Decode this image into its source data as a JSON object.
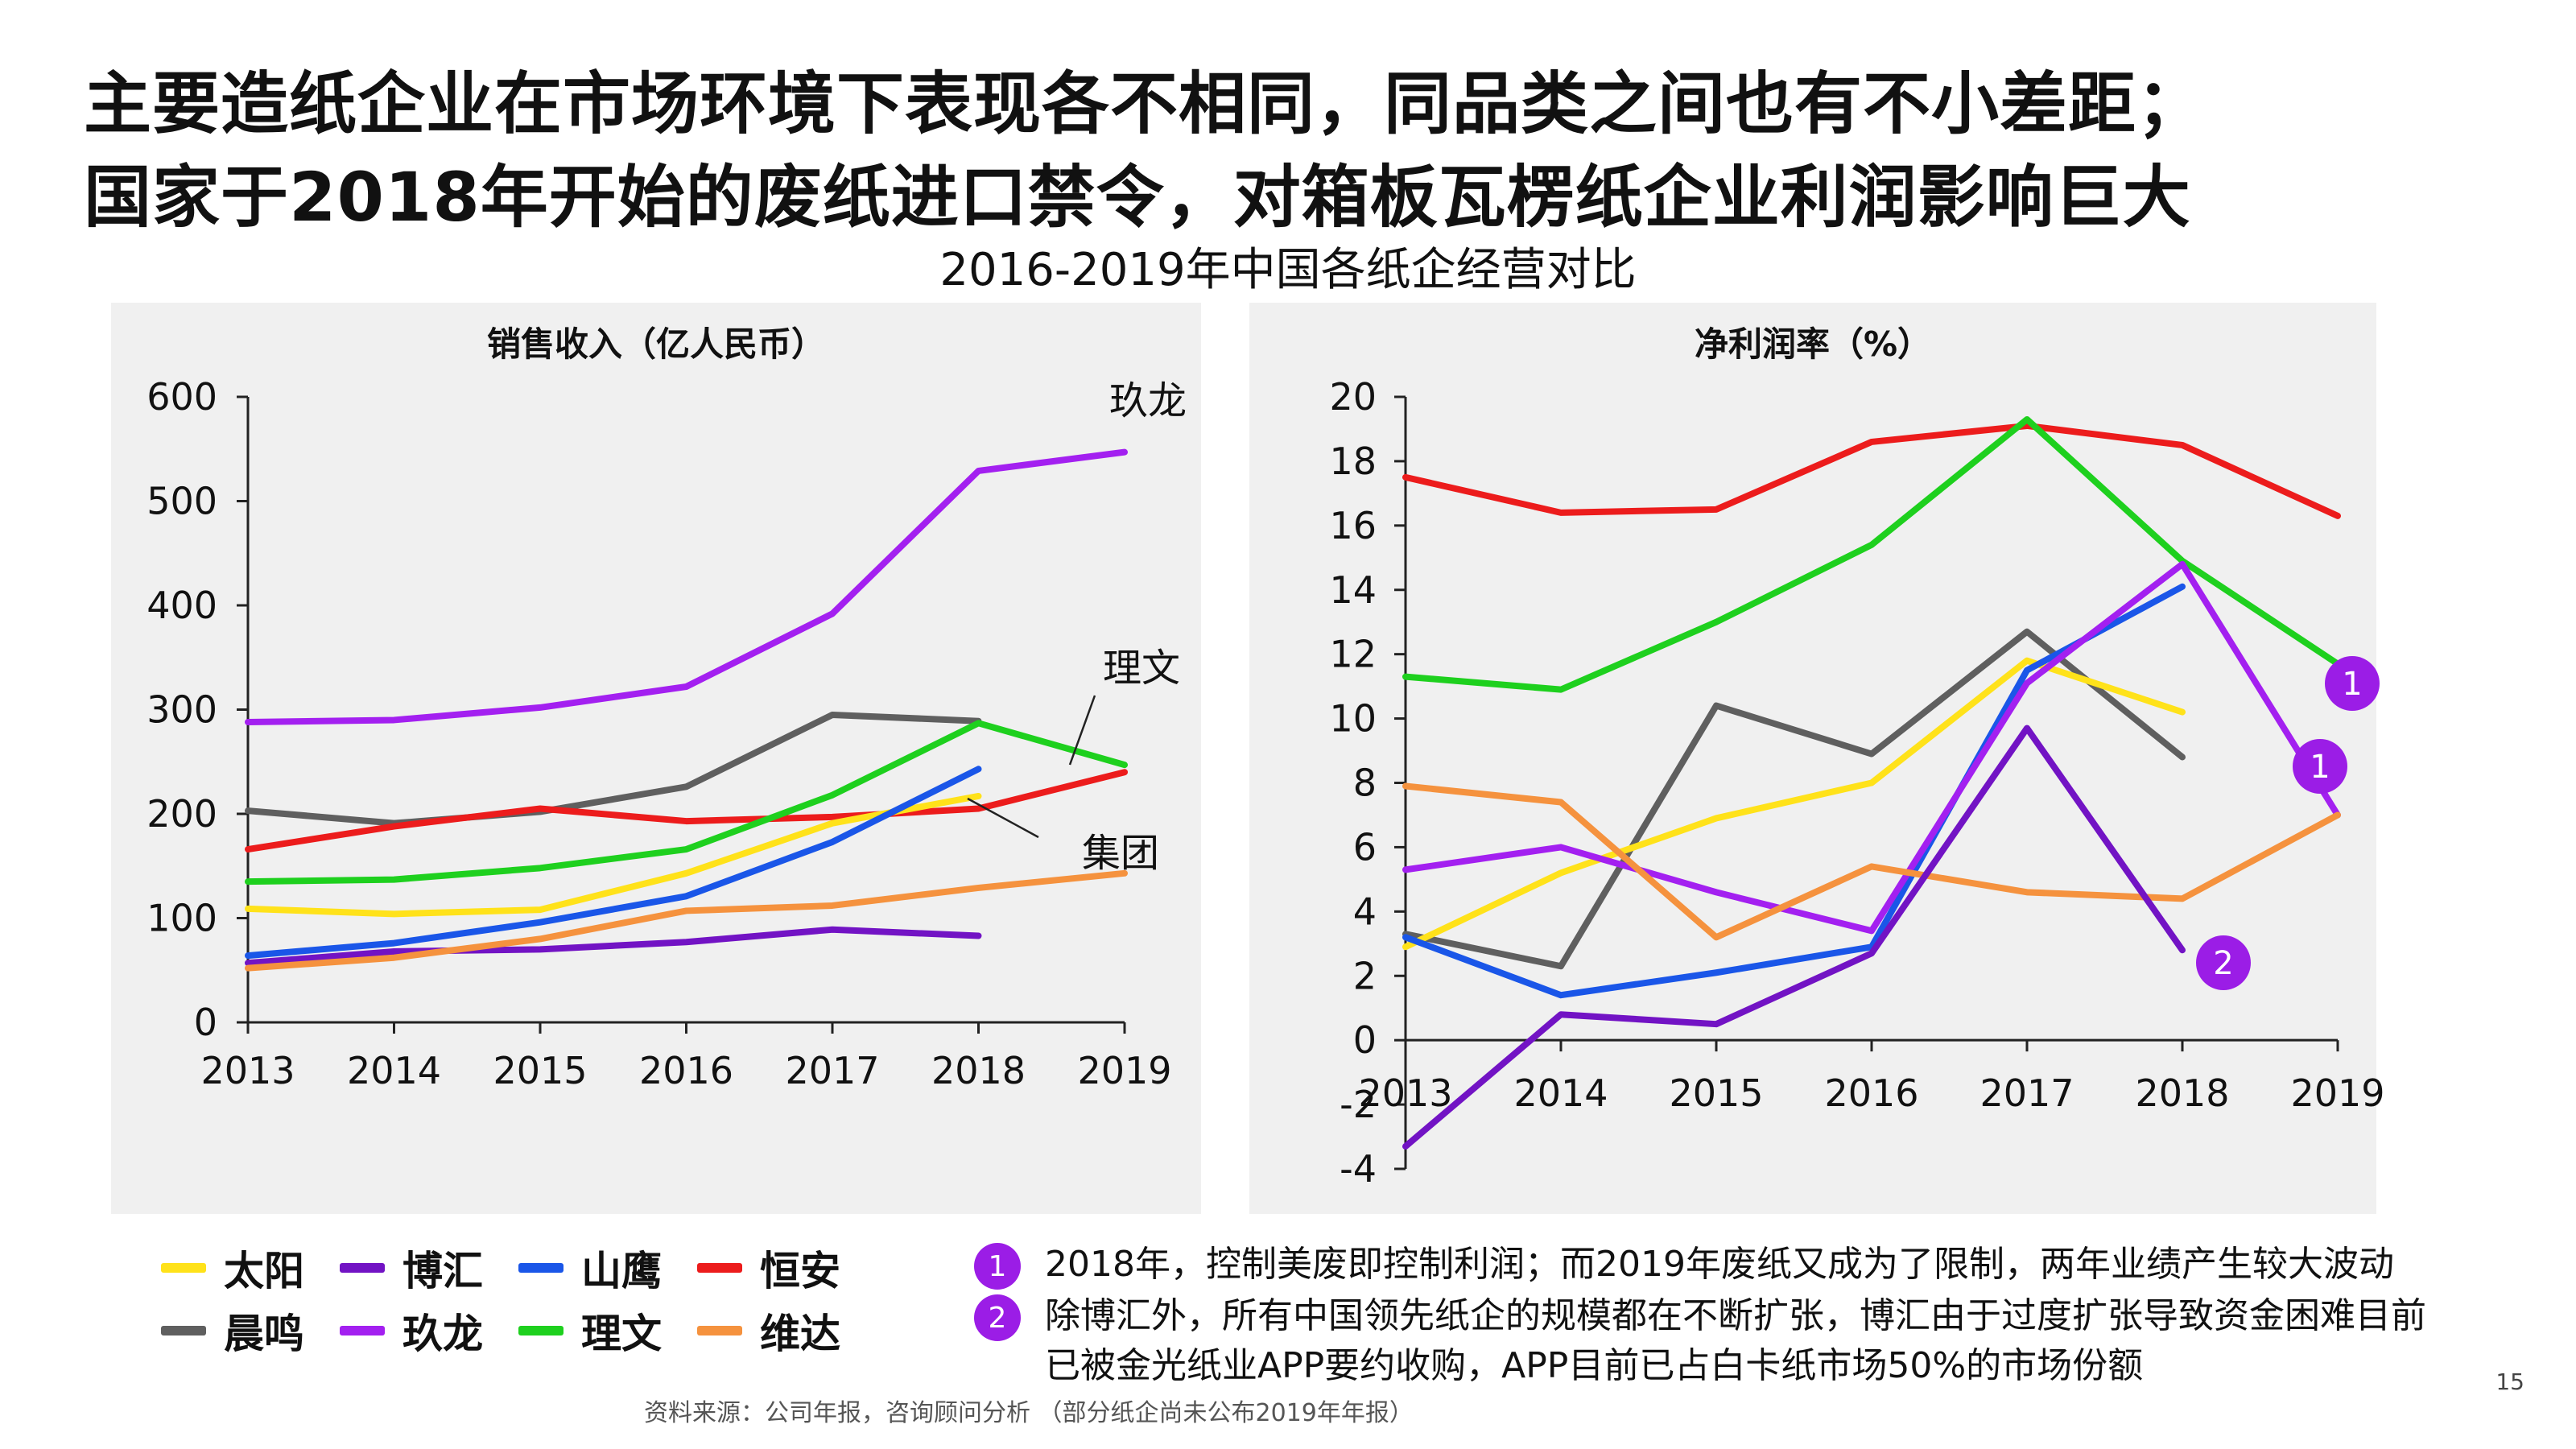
{
  "title_line1": "主要造纸企业在市场环境下表现各不相同，同品类之间也有不小差距；",
  "title_line2": "国家于2018年开始的废纸进口禁令，对箱板瓦楞纸企业利润影响巨大",
  "subtitle": "2016-2019年中国各纸企经营对比",
  "colors": {
    "太阳": "#ffe21a",
    "博汇": "#7213c4",
    "山鹰": "#1a56e8",
    "恒安": "#ec1c1c",
    "晨鸣": "#5f5f5f",
    "玖龙": "#a320f0",
    "理文": "#1ed01e",
    "维达": "#f5923e",
    "badge": "#9b1de6",
    "panel": "#f0f0f0"
  },
  "legend": [
    {
      "name": "太阳",
      "key": "太阳"
    },
    {
      "name": "博汇",
      "key": "博汇"
    },
    {
      "name": "山鹰",
      "key": "山鹰"
    },
    {
      "name": "恒安",
      "key": "恒安"
    },
    {
      "name": "晨鸣",
      "key": "晨鸣"
    },
    {
      "name": "玖龙",
      "key": "玖龙"
    },
    {
      "name": "理文",
      "key": "理文"
    },
    {
      "name": "维达",
      "key": "维达"
    }
  ],
  "notes": [
    {
      "badge": "1",
      "text": "2018年，控制美废即控制利润；而2019年废纸又成为了限制，两年业绩产生较大波动"
    },
    {
      "badge": "2",
      "text": "除博汇外，所有中国领先纸企的规模都在不断扩张，博汇由于过度扩张导致资金困难目前\n已被金光纸业APP要约收购，APP目前已占白卡纸市场50%的市场份额"
    }
  ],
  "source": "资料来源：公司年报，咨询顾问分析 （部分纸企尚未公布2019年年报）",
  "page_number": "15",
  "chart_data": [
    {
      "type": "line",
      "title": "销售收入（亿人民币）",
      "x": [
        "2013",
        "2014",
        "2015",
        "2016",
        "2017",
        "2018",
        "2019"
      ],
      "ylim": [
        0,
        600
      ],
      "yticks": [
        0,
        100,
        200,
        300,
        400,
        500,
        600
      ],
      "grid": false,
      "series": [
        {
          "name": "玖龙",
          "values": [
            288,
            290,
            302,
            322,
            392,
            529,
            547
          ]
        },
        {
          "name": "晨鸣",
          "values": [
            203,
            191,
            202,
            226,
            295,
            289,
            null
          ]
        },
        {
          "name": "恒安",
          "values": [
            166,
            188,
            205,
            193,
            197,
            205,
            240
          ]
        },
        {
          "name": "理文",
          "values": [
            135,
            137,
            148,
            166,
            218,
            287,
            247
          ]
        },
        {
          "name": "太阳",
          "values": [
            109,
            104,
            108,
            143,
            191,
            217,
            null
          ]
        },
        {
          "name": "山鹰",
          "values": [
            64,
            76,
            96,
            121,
            173,
            243,
            null
          ]
        },
        {
          "name": "博汇",
          "values": [
            57,
            68,
            70,
            77,
            89,
            83,
            null
          ]
        },
        {
          "name": "维达",
          "values": [
            52,
            62,
            80,
            107,
            112,
            129,
            143
          ]
        }
      ],
      "annotations": [
        {
          "text": "玖龙",
          "series": "玖龙"
        },
        {
          "text": "理文",
          "series": "理文"
        },
        {
          "text": "集团",
          "series": "太阳"
        }
      ]
    },
    {
      "type": "line",
      "title": "净利润率（%）",
      "x": [
        "2013",
        "2014",
        "2015",
        "2016",
        "2017",
        "2018",
        "2019"
      ],
      "ylim": [
        -4,
        20
      ],
      "yticks": [
        -4,
        -2,
        0,
        2,
        4,
        6,
        8,
        10,
        12,
        14,
        16,
        18,
        20
      ],
      "grid": false,
      "series": [
        {
          "name": "恒安",
          "values": [
            17.5,
            16.4,
            16.5,
            18.6,
            19.1,
            18.5,
            16.3
          ]
        },
        {
          "name": "理文",
          "values": [
            11.3,
            10.9,
            13.0,
            15.4,
            19.3,
            14.9,
            11.7
          ]
        },
        {
          "name": "晨鸣",
          "values": [
            3.3,
            2.3,
            10.4,
            8.9,
            12.7,
            8.8,
            null
          ]
        },
        {
          "name": "太阳",
          "values": [
            2.9,
            5.2,
            6.9,
            8.0,
            11.8,
            10.2,
            null
          ]
        },
        {
          "name": "山鹰",
          "values": [
            3.2,
            1.4,
            2.1,
            2.9,
            11.5,
            14.1,
            null
          ]
        },
        {
          "name": "玖龙",
          "values": [
            5.3,
            6.0,
            4.6,
            3.4,
            11.1,
            14.8,
            7.0
          ]
        },
        {
          "name": "维达",
          "values": [
            7.9,
            7.4,
            3.2,
            5.4,
            4.6,
            4.4,
            7.0
          ]
        },
        {
          "name": "博汇",
          "values": [
            -3.3,
            0.8,
            0.5,
            2.7,
            9.7,
            2.8,
            null
          ]
        }
      ],
      "markers": [
        {
          "text": "1",
          "series": "理文",
          "x": "2019",
          "y": 11.0
        },
        {
          "text": "1",
          "series": "玖龙",
          "x": "2019",
          "y": 8.4
        },
        {
          "text": "2",
          "series": "博汇",
          "x": "2018",
          "y": 2.4
        }
      ]
    }
  ]
}
